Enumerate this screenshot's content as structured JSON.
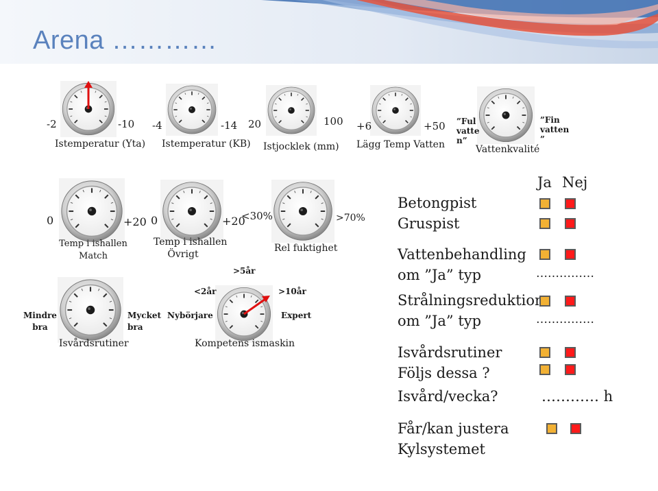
{
  "title": "Arena …………",
  "gauges_top": [
    {
      "min": "-2",
      "max": "-10",
      "label": "Istemperatur (Yta)"
    },
    {
      "min": "-4",
      "max": "-14",
      "label": "Istemperatur (KB)"
    },
    {
      "min": "20",
      "max": "100",
      "label": "Istjocklek (mm)"
    },
    {
      "min": "+6",
      "max": "+50",
      "label": "Lägg Temp Vatten"
    },
    {
      "min": "”Ful\nvatte\nn”",
      "max": "”Fin\nvatten\n”",
      "label": "Vattenkvalité"
    }
  ],
  "gauges_mid": [
    {
      "min": "0",
      "max": "+20",
      "label": "Temp i ishallen\nMatch"
    },
    {
      "min": "0",
      "max": "+20",
      "label": "Temp i ishallen\nÖvrigt"
    },
    {
      "min": "<30%",
      "max": ">70%",
      "label": "Rel fuktighet"
    }
  ],
  "gauges_bottom": [
    {
      "min": "Mindre\nbra",
      "max": "Mycket\nbra",
      "label": "Isvårdsrutiner"
    },
    {
      "label": "Kompetens ismaskin",
      "marks": [
        "<2år",
        ">5år",
        ">10år"
      ],
      "min": "Nybörjare",
      "max": "Expert"
    }
  ],
  "checklist": {
    "yes_header": "Ja",
    "no_header": "Nej",
    "items": [
      {
        "label": "Betongpist"
      },
      {
        "label": "Gruspist"
      },
      {
        "label": "Vattenbehandling"
      },
      {
        "label": "om ”Ja” typ",
        "fill": "……………"
      },
      {
        "label": "Strålningsreduktion"
      },
      {
        "label": "om ”Ja” typ",
        "fill": "……………"
      },
      {
        "label": "Isvårdsrutiner"
      },
      {
        "label": "Följs dessa ?"
      },
      {
        "label": "Isvård/vecka?",
        "fill": "………… h"
      },
      {
        "label": "Får/kan justera"
      },
      {
        "label": "Kylsystemet"
      }
    ]
  }
}
